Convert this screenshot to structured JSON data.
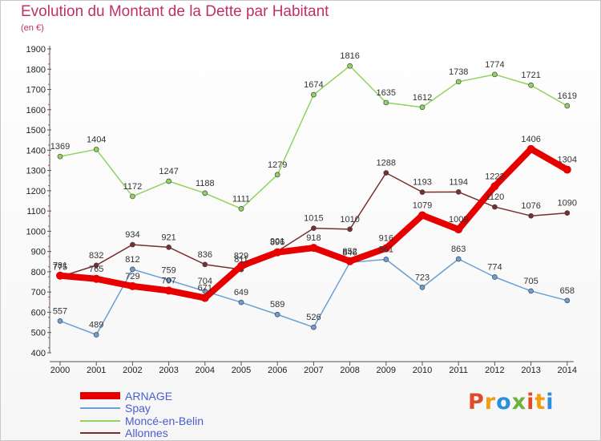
{
  "title": "Evolution du Montant de la Dette par Habitant",
  "subtitle": "(en €)",
  "logo_text": "Proxiti",
  "logo_colors": [
    "#e04a2a",
    "#f39c12",
    "#2b8fd9",
    "#6bb33a",
    "#e04a2a",
    "#f39c12",
    "#2b8fd9"
  ],
  "chart_data": {
    "type": "line",
    "title": "Evolution du Montant de la Dette par Habitant",
    "subtitle": "(en €)",
    "x": [
      "2000",
      "2001",
      "2002",
      "2003",
      "2004",
      "2005",
      "2006",
      "2007",
      "2008",
      "2009",
      "2010",
      "2011",
      "2012",
      "2013",
      "2014"
    ],
    "ylim": [
      400,
      1900
    ],
    "yticks": [
      400,
      500,
      600,
      700,
      800,
      900,
      1000,
      1100,
      1200,
      1300,
      1400,
      1500,
      1600,
      1700,
      1800,
      1900
    ],
    "grid": false,
    "legend_position": "bottom-left",
    "series": [
      {
        "name": "ARNAGE",
        "color": "#e60000",
        "values": [
          781,
          765,
          729,
          707,
          671,
          829,
          896,
          918,
          852,
          916,
          1079,
          1009,
          1222,
          1406,
          1304
        ]
      },
      {
        "name": "Spay",
        "color": "#6b9fd4",
        "values": [
          557,
          489,
          812,
          759,
          704,
          649,
          589,
          526,
          846,
          861,
          723,
          863,
          774,
          705,
          658
        ]
      },
      {
        "name": "Moncé-en-Belin",
        "color": "#8ed45f",
        "values": [
          1369,
          1404,
          1172,
          1247,
          1188,
          1111,
          1279,
          1674,
          1816,
          1635,
          1612,
          1738,
          1774,
          1721,
          1619
        ]
      },
      {
        "name": "Allonnes",
        "color": "#7a2e2e",
        "values": [
          775,
          832,
          934,
          921,
          836,
          811,
          901,
          1015,
          1010,
          1288,
          1193,
          1194,
          1120,
          1076,
          1090
        ]
      }
    ]
  }
}
